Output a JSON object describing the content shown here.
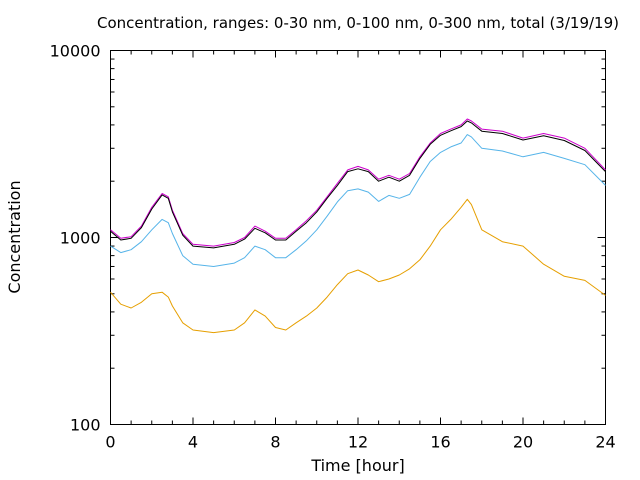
{
  "chart_data": {
    "type": "line",
    "title": "Concentration, ranges: 0-30 nm, 0-100 nm, 0-300 nm, total (3/19/19)",
    "xlabel": "Time [hour]",
    "ylabel": "Concentration",
    "xlim": [
      0,
      24
    ],
    "ylim": [
      100,
      10000
    ],
    "yscale": "log",
    "grid": false,
    "legend": "none",
    "xticks": [
      "0",
      "4",
      "8",
      "12",
      "16",
      "20",
      "24"
    ],
    "yticks": [
      "100",
      "1000",
      "10000"
    ],
    "x": [
      0,
      0.5,
      1,
      1.5,
      2,
      2.5,
      2.8,
      3,
      3.5,
      4,
      5,
      6,
      6.5,
      7,
      7.5,
      8,
      8.5,
      9,
      9.5,
      10,
      10.5,
      11,
      11.5,
      12,
      12.5,
      13,
      13.5,
      14,
      14.5,
      15,
      15.5,
      16,
      16.5,
      17,
      17.3,
      17.5,
      18,
      19,
      20,
      21,
      22,
      23,
      24
    ],
    "series": [
      {
        "color": "#cc00cc",
        "values": [
          1100,
          990,
          1010,
          1150,
          1450,
          1720,
          1650,
          1400,
          1050,
          920,
          900,
          940,
          1000,
          1150,
          1080,
          990,
          990,
          1100,
          1230,
          1400,
          1650,
          1950,
          2300,
          2400,
          2300,
          2050,
          2150,
          2050,
          2200,
          2700,
          3200,
          3600,
          3800,
          4000,
          4300,
          4200,
          3800,
          3700,
          3400,
          3600,
          3400,
          3000,
          2300
        ]
      },
      {
        "color": "#000000",
        "values": [
          1080,
          970,
          990,
          1130,
          1420,
          1690,
          1620,
          1370,
          1030,
          900,
          880,
          920,
          980,
          1120,
          1060,
          970,
          970,
          1080,
          1200,
          1370,
          1620,
          1900,
          2250,
          2330,
          2250,
          2000,
          2100,
          2000,
          2150,
          2650,
          3150,
          3520,
          3720,
          3920,
          4200,
          4100,
          3700,
          3600,
          3320,
          3500,
          3300,
          2920,
          2250
        ]
      },
      {
        "color": "#56b4e9",
        "values": [
          900,
          830,
          860,
          950,
          1100,
          1250,
          1200,
          1050,
          800,
          720,
          700,
          730,
          780,
          900,
          860,
          780,
          780,
          860,
          960,
          1100,
          1300,
          1550,
          1780,
          1820,
          1750,
          1560,
          1680,
          1620,
          1700,
          2100,
          2550,
          2850,
          3050,
          3200,
          3550,
          3450,
          3000,
          2900,
          2700,
          2850,
          2650,
          2450,
          1900
        ]
      },
      {
        "color": "#e69f00",
        "values": [
          510,
          440,
          420,
          450,
          500,
          510,
          480,
          430,
          350,
          320,
          310,
          320,
          350,
          410,
          380,
          330,
          320,
          350,
          380,
          420,
          480,
          560,
          640,
          670,
          630,
          580,
          600,
          630,
          680,
          760,
          900,
          1100,
          1250,
          1450,
          1600,
          1500,
          1100,
          950,
          900,
          720,
          620,
          590,
          490
        ]
      }
    ]
  }
}
